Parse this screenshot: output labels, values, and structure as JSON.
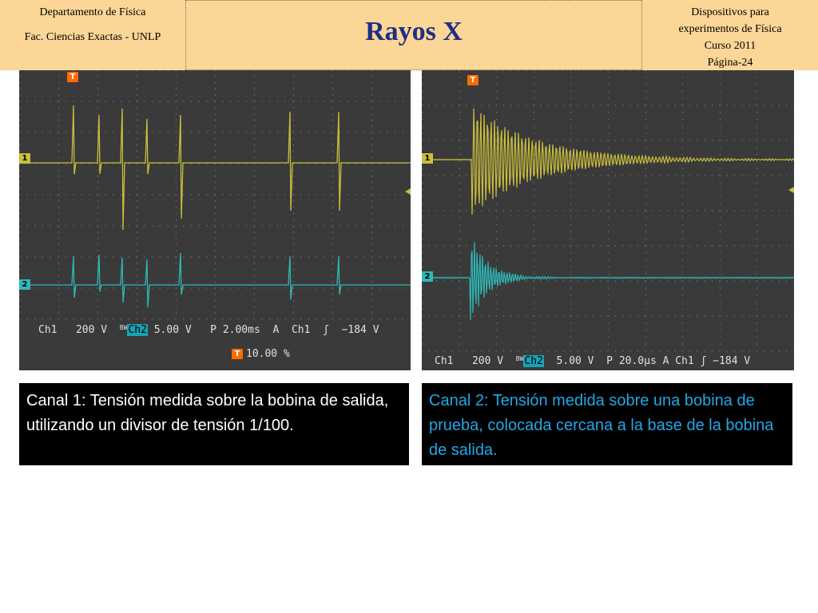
{
  "header": {
    "left_line1": "Departamento de Física",
    "left_line2": "Fac. Ciencias Exactas - UNLP",
    "title": "Rayos X",
    "right_line1": "Dispositivos para",
    "right_line2": "experimentos de Física",
    "right_line3": "Curso 2011",
    "right_line4": "Página-24"
  },
  "scope_left": {
    "trigger_marker": "T",
    "ch1_marker": "1",
    "ch2_marker": "2",
    "ch1_label": "Ch1",
    "ch1_scale": "200 V",
    "bw_mark": "BW",
    "ch2_label": "Ch2",
    "ch2_scale": "5.00 V",
    "timebase": "P 2.00ms",
    "trigger_mode": "A",
    "trigger_source": "Ch1",
    "trigger_slope": "ʃ",
    "trigger_level": "−184 V",
    "trigger_pos_marker": "T",
    "trigger_position": "10.00 %",
    "colors": {
      "ch1": "#c9bf3c",
      "ch2": "#2fb7b7"
    }
  },
  "scope_right": {
    "trigger_marker": "T",
    "ch1_marker": "1",
    "ch2_marker": "2",
    "ch1_label": "Ch1",
    "ch1_scale": "200 V",
    "bw_mark": "BW",
    "ch2_label": "Ch2",
    "ch2_scale": "5.00 V",
    "timebase": "P 20.0µs",
    "trigger_mode": "A",
    "trigger_source": "Ch1",
    "trigger_slope": "ʃ",
    "trigger_level": "−184 V",
    "colors": {
      "ch1": "#c9bf3c",
      "ch2": "#2fb7b7"
    }
  },
  "captions": {
    "left": "Canal 1: Tensión medida sobre la bobina de salida, utilizando un divisor de tensión 1/100.",
    "right": "Canal 2: Tensión medida sobre una bobina de prueba, colocada cercana a la base de la bobina de salida."
  }
}
